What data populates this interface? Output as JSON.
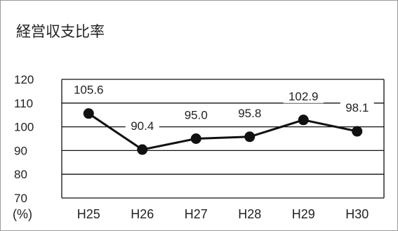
{
  "chart_data": {
    "type": "line",
    "title": "経営収支比率",
    "unit_label": "(%)",
    "categories": [
      "H25",
      "H26",
      "H27",
      "H28",
      "H29",
      "H30"
    ],
    "series": [
      {
        "values": [
          105.6,
          90.4,
          95.0,
          95.8,
          102.9,
          98.1
        ]
      }
    ],
    "data_labels": [
      "105.6",
      "90.4",
      "95.0",
      "95.8",
      "102.9",
      "98.1"
    ],
    "y_ticks": [
      "120",
      "110",
      "100",
      "90",
      "80",
      "70"
    ],
    "ylim": [
      70,
      120
    ],
    "grid": true,
    "legend": "none",
    "colors": {
      "line": "#111111",
      "grid": "#111111"
    }
  }
}
